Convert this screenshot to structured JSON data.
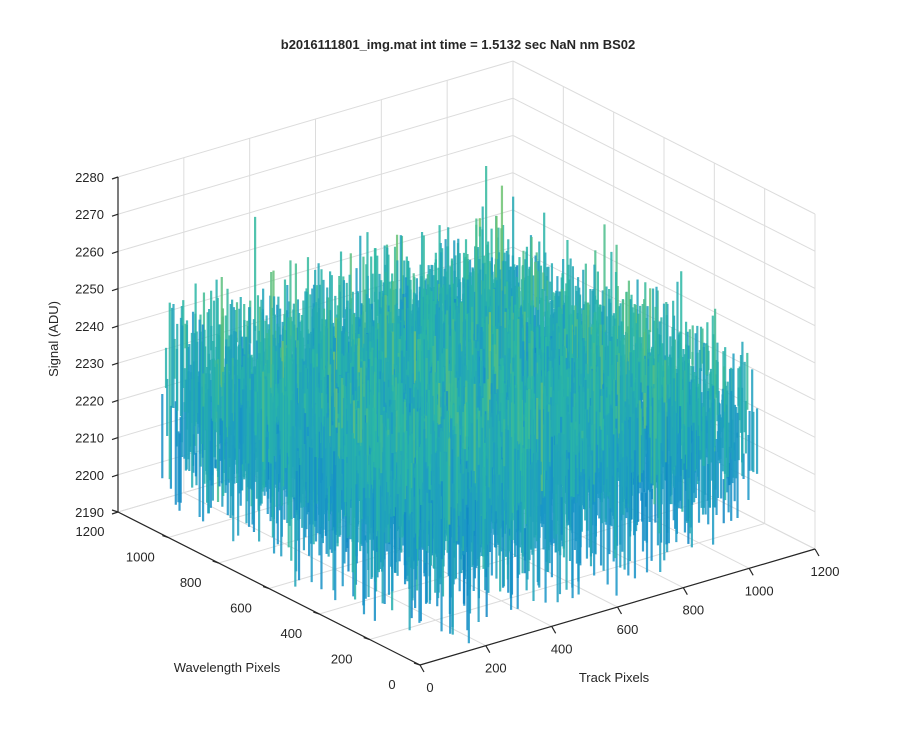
{
  "chart_data": {
    "type": "surface3d",
    "title": "b2016111801_img.mat int time = 1.5132 sec  NaN nm BS02",
    "xlabel": "Track Pixels",
    "ylabel": "Wavelength Pixels",
    "zlabel": "Signal (ADU)",
    "xlim": [
      0,
      1200
    ],
    "ylim": [
      0,
      1200
    ],
    "zlim": [
      2190,
      2280
    ],
    "xticks": [
      "0",
      "200",
      "400",
      "600",
      "800",
      "1000",
      "1200"
    ],
    "yticks": [
      "0",
      "200",
      "400",
      "600",
      "800",
      "1000",
      "1200"
    ],
    "zticks": [
      "2190",
      "2200",
      "2210",
      "2220",
      "2230",
      "2240",
      "2250",
      "2260",
      "2270",
      "2280"
    ],
    "grid": true,
    "colormap": "parula",
    "surface": {
      "x_range": [
        0,
        1024
      ],
      "y_range": [
        0,
        1024
      ],
      "mean_signal": 2228,
      "noise_amplitude": 12,
      "typical_min": 2200,
      "typical_max": 2262
    },
    "colors": {
      "low": "#0072BD",
      "mid": "#2BB8A4",
      "high": "#E6C83C",
      "grid": "#DCDCDC",
      "axis": "#262626"
    }
  }
}
